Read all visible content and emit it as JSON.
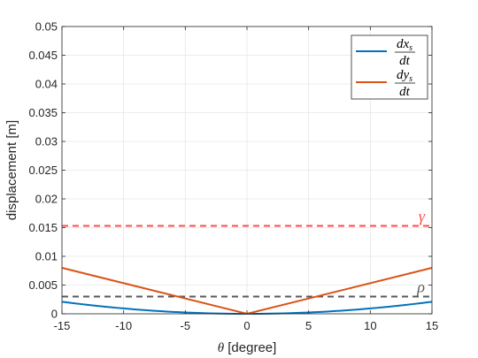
{
  "chart_data": {
    "type": "line",
    "xlabel": {
      "symbol": "θ",
      "unit": "[degree]"
    },
    "ylabel": "displacement [m]",
    "xlim": [
      -15,
      15
    ],
    "ylim": [
      0,
      0.05
    ],
    "xticks": [
      -15,
      -10,
      -5,
      0,
      5,
      10,
      15
    ],
    "yticks": [
      0,
      0.005,
      0.01,
      0.015,
      0.02,
      0.025,
      0.03,
      0.035,
      0.04,
      0.045,
      0.05
    ],
    "grid": true,
    "legend_position": "top-right",
    "series": [
      {
        "name": "dx_s/dt",
        "legend": {
          "num": "dx",
          "sub": "s",
          "den": "dt"
        },
        "color": "#0072BD",
        "style": "solid",
        "x": [
          -15,
          -12,
          -9,
          -6,
          -3,
          0,
          3,
          6,
          9,
          12,
          15
        ],
        "y": [
          0.0021,
          0.0013,
          0.0007,
          0.0003,
          0.0001,
          0.0,
          0.0001,
          0.0003,
          0.0007,
          0.0013,
          0.0021
        ]
      },
      {
        "name": "dy_s/dt",
        "legend": {
          "num": "dy",
          "sub": "s",
          "den": "dt"
        },
        "color": "#D95319",
        "style": "solid",
        "x": [
          -15,
          0,
          15
        ],
        "y": [
          0.008,
          0.0,
          0.008
        ]
      }
    ],
    "hlines": [
      {
        "label": "γ",
        "y": 0.0153,
        "color": "#FF4D4D",
        "style": "dashed"
      },
      {
        "label": "ρ",
        "y": 0.003,
        "color": "#595959",
        "style": "dashed"
      }
    ]
  }
}
